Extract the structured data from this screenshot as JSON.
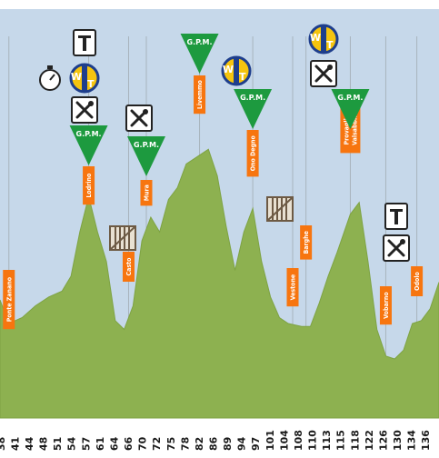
{
  "colors": {
    "sky": "#c6d8ea",
    "terrain": "#8db150",
    "terrain_edge": "#7ea343",
    "label_box": "#f7750f",
    "gpm_triangle": "#1d9a3f",
    "pole": "#a8b4bd",
    "tick_text": "#1a1a1a",
    "wt_blue": "#1e3e8c",
    "wt_yellow": "#f5c40f"
  },
  "chart_data": {
    "type": "area",
    "title": "",
    "xlabel": "",
    "ylabel": "",
    "xlim": [
      37,
      136
    ],
    "ylim": [
      0,
      100
    ],
    "x_ticks": [
      38,
      41,
      44,
      48,
      51,
      54,
      57,
      61,
      64,
      66,
      70,
      72,
      75,
      78,
      82,
      86,
      89,
      94,
      97,
      101,
      104,
      108,
      110,
      113,
      115,
      118,
      122,
      126,
      130,
      134,
      136
    ],
    "x_tick_labels": [
      "38",
      "41",
      "44",
      "48",
      "51",
      "54",
      "57",
      "61",
      "64",
      "66",
      "70",
      "72",
      "75",
      "78",
      "82",
      "86",
      "89",
      "94",
      "97",
      "101",
      "104",
      "108",
      "110",
      "113",
      "115",
      "118",
      "122",
      "126",
      "130",
      "134",
      "136"
    ],
    "series": [
      {
        "x": [
          37,
          39,
          42,
          45,
          48,
          51,
          53,
          55,
          57,
          59,
          61,
          63,
          65,
          67,
          69,
          71,
          73,
          75,
          77,
          79,
          82,
          84,
          86,
          88,
          90,
          92,
          94,
          96,
          98,
          100,
          102,
          105,
          107,
          109,
          111,
          113,
          116,
          118,
          120,
          122,
          124,
          126,
          128,
          130,
          132,
          134,
          136
        ],
        "y": [
          40,
          32,
          34,
          38,
          41,
          43,
          48,
          63,
          75,
          63,
          53,
          33,
          30,
          38,
          60,
          68,
          63,
          74,
          78,
          86,
          89,
          91,
          82,
          65,
          50,
          63,
          71,
          53,
          41,
          34,
          32,
          31,
          31,
          39,
          48,
          56,
          69,
          73,
          53,
          30,
          21,
          20,
          23,
          32,
          33,
          37,
          46
        ]
      }
    ],
    "locations": [
      {
        "x": 39,
        "name": "Ponte Zanano"
      },
      {
        "x": 57,
        "name": "Lodrino"
      },
      {
        "x": 66,
        "name": "Casto"
      },
      {
        "x": 70,
        "name": "Mura"
      },
      {
        "x": 82,
        "name": "Livemmo"
      },
      {
        "x": 94,
        "name": "Ono Degno"
      },
      {
        "x": 103,
        "name": "Vestone"
      },
      {
        "x": 106,
        "name": "Barghe"
      },
      {
        "x": 116,
        "name": "Provaglio Valsabbia"
      },
      {
        "x": 124,
        "name": "Vobarno"
      },
      {
        "x": 131,
        "name": "Odolo"
      }
    ],
    "gpm_markers": [
      {
        "x": 57,
        "label": "G.P.M."
      },
      {
        "x": 70,
        "label": "G.P.M."
      },
      {
        "x": 82,
        "label": "G.P.M."
      },
      {
        "x": 94,
        "label": "G.P.M."
      },
      {
        "x": 116,
        "label": "G.P.M."
      }
    ],
    "icons": [
      {
        "x": 57,
        "stack": [
          "timer-icon",
          "water-tap-icon",
          "food-fork-knife-icon"
        ],
        "top": "feeding-post-t-icon"
      },
      {
        "x": 66,
        "stack": [
          "gate-icon"
        ]
      },
      {
        "x": 70,
        "stack": [
          "food-fork-knife-icon"
        ]
      },
      {
        "x": 94,
        "stack": [
          "water-tap-icon"
        ]
      },
      {
        "x": 106,
        "stack": [
          "gate-icon"
        ]
      },
      {
        "x": 116,
        "stack": [
          "water-tap-icon",
          "food-fork-knife-icon"
        ]
      },
      {
        "x": 131,
        "stack": [
          "feeding-post-t-icon",
          "food-fork-knife-icon"
        ]
      }
    ],
    "grid": false,
    "legend": "none"
  }
}
